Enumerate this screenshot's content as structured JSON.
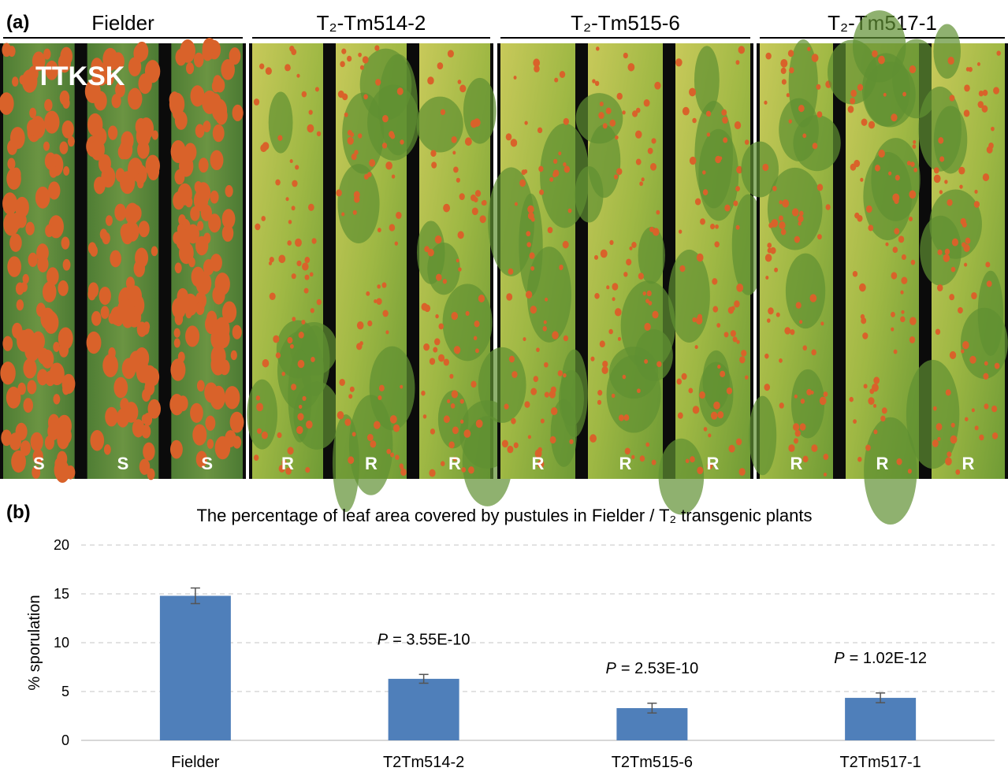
{
  "panel_a": {
    "label": "(a)",
    "race": "TTKSK",
    "panels": [
      {
        "title": "Fielder",
        "leaf_labels": [
          "S",
          "S",
          "S"
        ]
      },
      {
        "title": "T₂-Tm514-2",
        "leaf_labels": [
          "R",
          "R",
          "R"
        ]
      },
      {
        "title": "T₂-Tm515-6",
        "leaf_labels": [
          "R",
          "R",
          "R"
        ]
      },
      {
        "title": "T₂-Tm517-1",
        "leaf_labels": [
          "R",
          "R",
          "R"
        ]
      }
    ]
  },
  "panel_b_label": "(b)",
  "chart_data": {
    "type": "bar",
    "title": "The percentage of leaf area covered by pustules in Fielder / T₂ transgenic plants",
    "y_label": "% sporulation",
    "categories": [
      "Fielder",
      "T2Tm514-2",
      "T2Tm515-6",
      "T2Tm517-1"
    ],
    "values": [
      14.8,
      6.3,
      3.3,
      4.35
    ],
    "errors": [
      0.8,
      0.45,
      0.5,
      0.5
    ],
    "p_symbol": "P",
    "p_values": [
      null,
      "= 3.55E-10",
      "= 2.53E-10",
      "= 1.02E-12"
    ],
    "color": "#4f7fba",
    "ylim": [
      0,
      20
    ],
    "yticks": [
      0,
      5,
      10,
      15,
      20
    ],
    "grid": true
  }
}
